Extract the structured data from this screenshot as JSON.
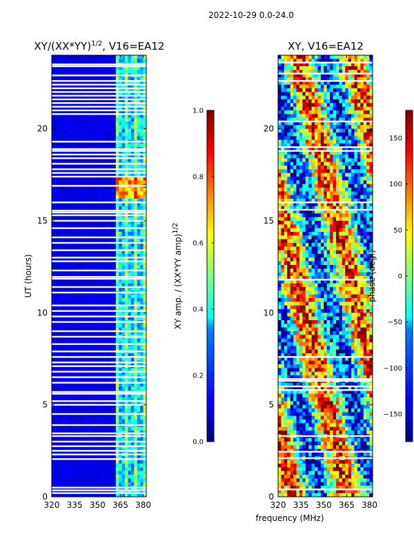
{
  "figure": {
    "suptitle": "2022-10-29 0.0-24.0",
    "xlabel": "frequency (MHz)"
  },
  "chart_data": [
    {
      "type": "heatmap",
      "title_main": "XY/(XX*YY)",
      "title_sup": "1/2",
      "title_tail": ", V16=EA12",
      "xlabel": "",
      "ylabel": "UT (hours)",
      "xlim": [
        320,
        382
      ],
      "ylim": [
        0,
        24
      ],
      "x_ticks": [
        320,
        335,
        350,
        365,
        380
      ],
      "y_ticks": [
        0,
        5,
        10,
        15,
        20
      ],
      "colorbar": {
        "colormap": "jet",
        "range": [
          0.0,
          1.0
        ],
        "ticks": [
          "0.0",
          "0.2",
          "0.4",
          "0.6",
          "0.8",
          "1.0"
        ],
        "label_main": "XY amp. / (XX*YY amp)",
        "label_sup": "1/2"
      },
      "missing_data_hours": [
        0.2,
        0.35,
        0.5,
        2.05,
        2.3,
        2.5,
        2.75,
        3.0,
        3.3,
        3.45,
        3.9,
        4.5,
        5.0,
        5.2,
        5.6,
        5.7,
        6.2,
        6.5,
        6.8,
        7.1,
        7.3,
        7.6,
        7.9,
        8.3,
        8.7,
        9.0,
        9.5,
        9.8,
        10.1,
        10.4,
        11.1,
        11.4,
        11.85,
        11.95,
        12.3,
        12.8,
        13.0,
        13.4,
        13.8,
        14.1,
        14.6,
        15.0,
        15.3,
        15.45,
        15.55,
        16.0,
        16.9,
        17.4,
        17.6,
        17.8,
        18.1,
        18.4,
        18.6,
        18.8,
        18.9,
        19.3,
        20.8,
        21.0,
        21.2,
        21.4,
        21.6,
        21.8,
        22.0,
        22.2,
        22.4,
        22.6,
        22.9,
        23.4,
        23.5
      ],
      "high_amplitude_band": {
        "freq_mhz": [
          362,
          382
        ],
        "hours": [
          16.1,
          17.3
        ]
      },
      "active_freq_mhz": [
        362,
        382
      ],
      "quiet_level": 0.08
    },
    {
      "type": "heatmap",
      "title_main": "XY, V16=EA12",
      "xlabel": "",
      "ylabel": "",
      "xlim": [
        320,
        382
      ],
      "ylim": [
        0,
        24
      ],
      "x_ticks": [
        320,
        335,
        350,
        365,
        380
      ],
      "y_ticks": [
        0,
        5,
        10,
        15,
        20
      ],
      "colorbar": {
        "colormap": "jet",
        "range": [
          -180,
          180
        ],
        "ticks": [
          "150",
          "100",
          "50",
          "0",
          "−50",
          "−100",
          "−150"
        ],
        "tick_values": [
          150,
          100,
          50,
          0,
          -50,
          -100,
          -150
        ],
        "label_main": "phase (deg.)"
      },
      "missing_data_hours": [
        0.4,
        2.1,
        2.45,
        3.3,
        5.8,
        6.0,
        6.3,
        6.4,
        7.6,
        11.8,
        15.6,
        16.0,
        18.8,
        19.0,
        20.4,
        22.6,
        23.0,
        23.6
      ]
    }
  ]
}
